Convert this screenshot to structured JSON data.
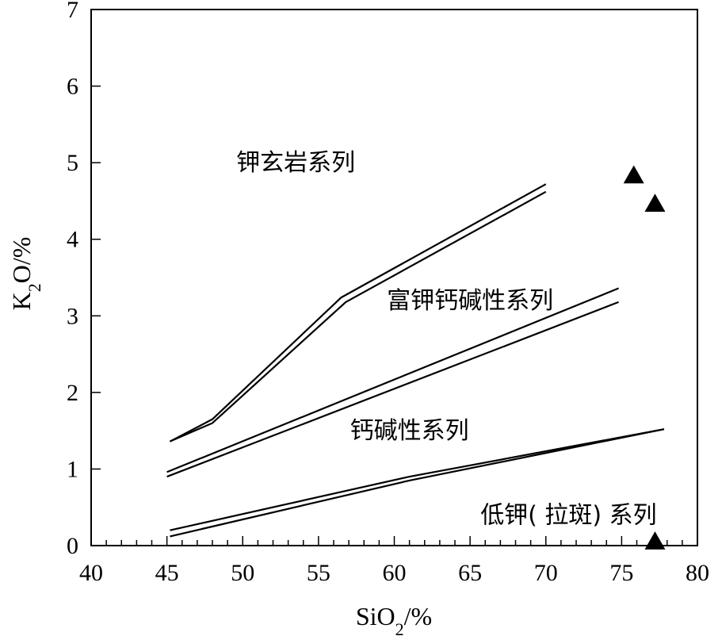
{
  "chart_data": {
    "type": "scatter",
    "xlabel": {
      "base": "SiO",
      "sub": "2",
      "unit": "/%"
    },
    "ylabel": {
      "base": "K",
      "sub": "2",
      "rest": "O/%"
    },
    "xlim": [
      40,
      80
    ],
    "ylim": [
      0,
      7
    ],
    "x_ticks": [
      40,
      45,
      50,
      55,
      60,
      65,
      70,
      75,
      80
    ],
    "y_ticks": [
      0,
      1,
      2,
      3,
      4,
      5,
      6,
      7
    ],
    "grid": false,
    "boundary_lines": [
      {
        "points": [
          [
            45.2,
            1.36
          ],
          [
            48.0,
            1.65
          ],
          [
            56.5,
            3.24
          ],
          [
            70.0,
            4.72
          ]
        ]
      },
      {
        "points": [
          [
            45.2,
            1.36
          ],
          [
            48.0,
            1.6
          ],
          [
            56.8,
            3.18
          ],
          [
            70.0,
            4.62
          ]
        ]
      },
      {
        "points": [
          [
            45.0,
            0.96
          ],
          [
            74.8,
            3.36
          ]
        ]
      },
      {
        "points": [
          [
            45.0,
            0.9
          ],
          [
            74.8,
            3.18
          ]
        ]
      },
      {
        "points": [
          [
            45.2,
            0.2
          ],
          [
            61.0,
            0.9
          ],
          [
            77.8,
            1.52
          ]
        ]
      },
      {
        "points": [
          [
            45.2,
            0.12
          ],
          [
            61.0,
            0.85
          ],
          [
            77.8,
            1.52
          ]
        ]
      }
    ],
    "region_labels": [
      {
        "text": "钾玄岩系列",
        "x": 53.5,
        "y": 5.0
      },
      {
        "text": "富钾钙碱性系列",
        "x": 65.0,
        "y": 3.2
      },
      {
        "text": "钙碱性系列",
        "x": 61.0,
        "y": 1.5
      },
      {
        "text": "低钾( 拉斑) 系列",
        "x": 71.5,
        "y": 0.4
      }
    ],
    "points": [
      {
        "x": 75.8,
        "y": 4.83
      },
      {
        "x": 77.2,
        "y": 4.46
      },
      {
        "x": 77.2,
        "y": 0.05
      }
    ],
    "marker": "triangle-filled"
  }
}
